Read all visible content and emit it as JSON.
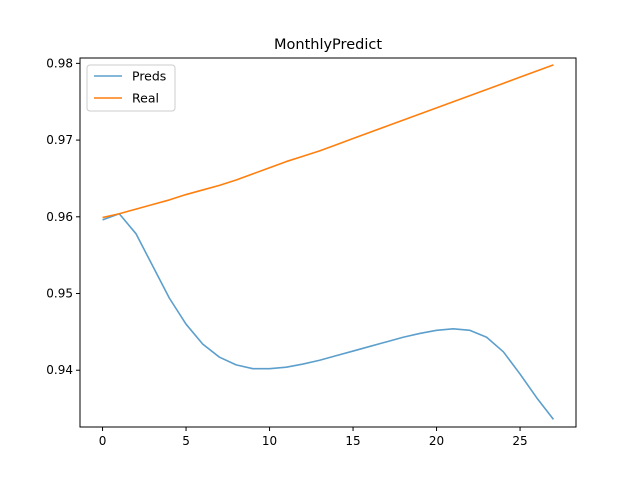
{
  "chart_data": {
    "type": "line",
    "title": "MonthlyPredict",
    "xlabel": "",
    "ylabel": "",
    "xlim": [
      -1.35,
      28.35
    ],
    "ylim": [
      0.9326,
      0.9807
    ],
    "xticks": [
      0,
      5,
      10,
      15,
      20,
      25
    ],
    "yticks": [
      0.94,
      0.95,
      0.96,
      0.97,
      0.98
    ],
    "xtick_labels": [
      "0",
      "5",
      "10",
      "15",
      "20",
      "25"
    ],
    "ytick_labels": [
      "0.94",
      "0.95",
      "0.96",
      "0.97",
      "0.98"
    ],
    "grid": false,
    "legend_position": "top-left",
    "x": [
      0,
      1,
      2,
      3,
      4,
      5,
      6,
      7,
      8,
      9,
      10,
      11,
      12,
      13,
      14,
      15,
      16,
      17,
      18,
      19,
      20,
      21,
      22,
      23,
      24,
      25,
      26,
      27
    ],
    "series": [
      {
        "name": "Preds",
        "color": "#5c9fcc",
        "values": [
          0.9596,
          0.9604,
          0.9578,
          0.9536,
          0.9494,
          0.946,
          0.9434,
          0.9417,
          0.9407,
          0.9402,
          0.9402,
          0.9404,
          0.9408,
          0.9413,
          0.9419,
          0.9425,
          0.9431,
          0.9437,
          0.9443,
          0.9448,
          0.9452,
          0.9454,
          0.9452,
          0.9443,
          0.9424,
          0.9395,
          0.9364,
          0.9336
        ]
      },
      {
        "name": "Real",
        "color": "#ff7f0e",
        "values": [
          0.9599,
          0.9604,
          0.961,
          0.9616,
          0.9622,
          0.9629,
          0.9635,
          0.9641,
          0.9648,
          0.9656,
          0.9664,
          0.9672,
          0.9679,
          0.9686,
          0.9694,
          0.9702,
          0.971,
          0.9718,
          0.9726,
          0.9734,
          0.9742,
          0.975,
          0.9758,
          0.9766,
          0.9774,
          0.9782,
          0.979,
          0.9798
        ]
      }
    ]
  }
}
